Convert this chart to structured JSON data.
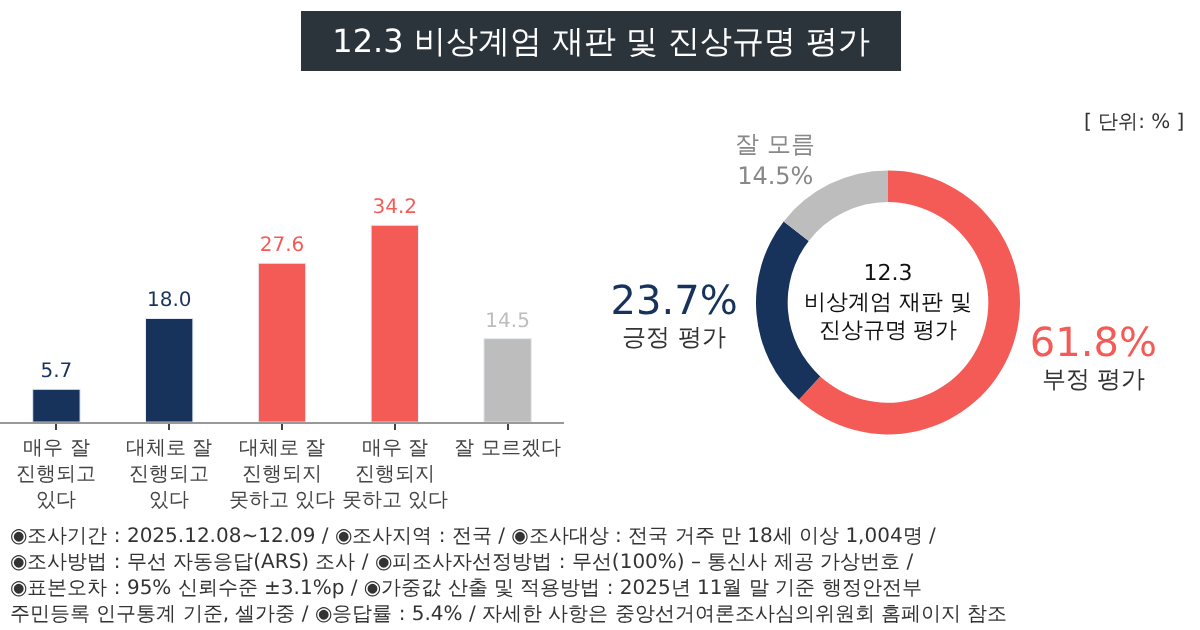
{
  "chart_data": [
    {
      "type": "bar",
      "title": "12.3 비상계엄 재판 및 진상규명 평가",
      "categories": [
        "매우 잘\n진행되고\n있다",
        "대체로 잘\n진행되고\n있다",
        "대체로 잘\n진행되지\n못하고 있다",
        "매우 잘\n진행되지\n못하고 있다",
        "잘 모르겠다"
      ],
      "values": [
        5.7,
        18.0,
        27.6,
        34.2,
        14.5
      ],
      "colors": [
        "#17335c",
        "#17335c",
        "#f45b57",
        "#f45b57",
        "#bdbdbd"
      ],
      "value_labels": [
        "5.7",
        "18.0",
        "27.6",
        "34.2",
        "14.5"
      ],
      "annotations": [
        "[ 단위: % ]",
        "◉조사기간 : 2025.12.08~12.09 / ◉조사지역 : 전국 / ◉조사대상 : 전국 거주 만 18세 이상 1,004명 /\n◉조사방법 : 무선 자동응답(ARS) 조사 / ◉피조사자선정방법 : 무선(100%) – 통신사 제공 가상번호 /\n◉표본오차 : 95% 신뢰수준 ±3.1%p / ◉가중값 산출 및 적용방법 : 2025년 11월 말 기준 행정안전부\n주민등록 인구통계 기준, 셀가중 / ◉응답률 : 5.4% / 자세한 사항은 중앙선거여론조사심의위원회 홈페이지 참조"
      ]
    },
    {
      "type": "donut",
      "title": "12.3\n비상계엄 재판 및\n진상규명 평가",
      "categories": [
        "부정 평가",
        "긍정 평가",
        "잘 모름"
      ],
      "values": [
        61.8,
        23.7,
        14.5
      ],
      "value_labels": [
        "61.8%",
        "23.7%",
        "14.5%"
      ],
      "colors": [
        "#f45b57",
        "#17335c",
        "#bdbdbd"
      ]
    }
  ]
}
